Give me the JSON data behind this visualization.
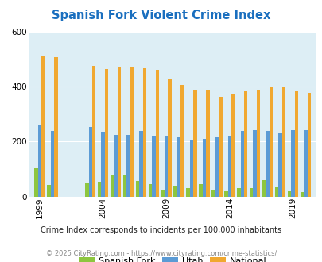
{
  "title": "Spanish Fork Violent Crime Index",
  "year_data": [
    [
      1999,
      105,
      258,
      508
    ],
    [
      2000,
      42,
      238,
      507
    ],
    [
      2003,
      48,
      252,
      475
    ],
    [
      2004,
      52,
      235,
      463
    ],
    [
      2005,
      78,
      224,
      469
    ],
    [
      2006,
      78,
      224,
      469
    ],
    [
      2007,
      55,
      238,
      466
    ],
    [
      2008,
      45,
      222,
      460
    ],
    [
      2009,
      25,
      222,
      430
    ],
    [
      2010,
      38,
      215,
      406
    ],
    [
      2011,
      30,
      205,
      387
    ],
    [
      2012,
      45,
      210,
      387
    ],
    [
      2013,
      25,
      215,
      362
    ],
    [
      2014,
      20,
      220,
      372
    ],
    [
      2015,
      30,
      237,
      383
    ],
    [
      2016,
      30,
      242,
      387
    ],
    [
      2017,
      60,
      237,
      401
    ],
    [
      2018,
      35,
      232,
      396
    ],
    [
      2019,
      20,
      240,
      381
    ],
    [
      2020,
      15,
      240,
      377
    ]
  ],
  "xtick_years": [
    1999,
    2004,
    2009,
    2014,
    2019
  ],
  "ylim": [
    0,
    600
  ],
  "yticks": [
    0,
    200,
    400,
    600
  ],
  "legend_labels": [
    "Spanish Fork",
    "Utah",
    "National"
  ],
  "bar_colors": [
    "#8dc63f",
    "#5b9bd5",
    "#f0a830"
  ],
  "axis_bg": "#ddeef5",
  "grid_color": "#ffffff",
  "title_color": "#1a6fbf",
  "subtitle": "Crime Index corresponds to incidents per 100,000 inhabitants",
  "footer": "© 2025 CityRating.com - https://www.cityrating.com/crime-statistics/",
  "subtitle_color": "#222222",
  "footer_color": "#888888",
  "bar_width": 0.28
}
